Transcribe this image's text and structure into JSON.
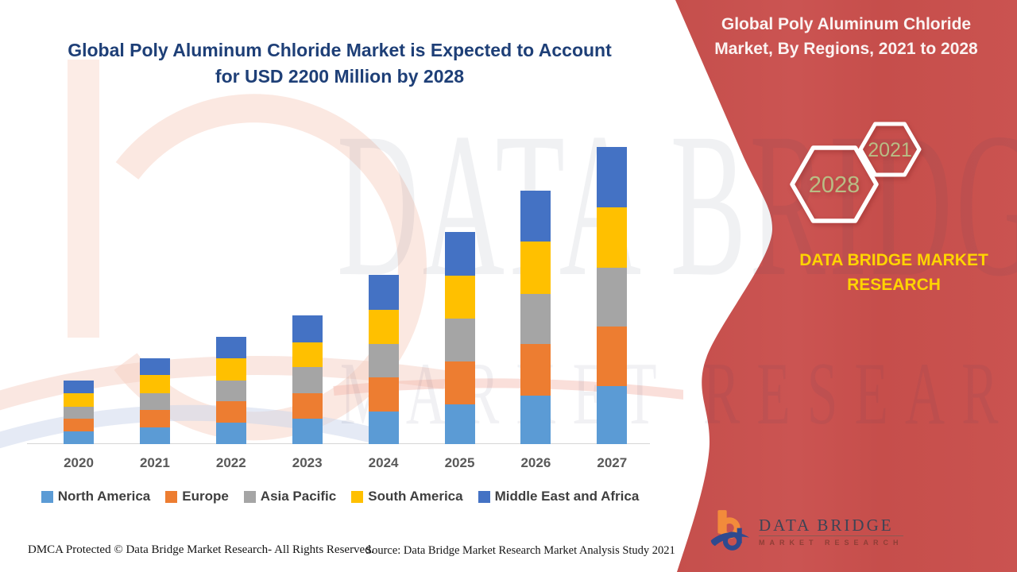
{
  "title": {
    "line1": "Global Poly Aluminum Chloride Market is Expected to Account",
    "line2": "for USD 2200 Million by 2028",
    "color": "#1e3f77"
  },
  "side_panel": {
    "bg_color": "#c9514e",
    "heading_line1": "Global Poly Aluminum Chloride",
    "heading_line2": "Market, By Regions, 2021 to 2028",
    "hexagon_large_label": "2028",
    "hexagon_small_label": "2021",
    "hexagon_label_color": "#b9bd85",
    "brand_line1": "DATA BRIDGE MARKET",
    "brand_line2": "RESEARCH",
    "brand_color": "#ffd400",
    "logo": {
      "name": "DATA BRIDGE",
      "subname": "MARKET RESEARCH"
    }
  },
  "watermark": {
    "line1": "DATA BRIDGE",
    "line2": "MARKET RESEARCH"
  },
  "chart_data": {
    "type": "bar",
    "stacked": true,
    "title": "Global Poly Aluminum Chloride Market, By Regions, 2021 to 2028",
    "xlabel": "",
    "ylabel": "",
    "y_axis_visible": false,
    "units": "relative segment heights (no value axis shown in source image)",
    "legend_position": "bottom",
    "axis_label_color": "#595959",
    "legend_text_color": "#3f3f3f",
    "categories": [
      "2020",
      "2021",
      "2022",
      "2023",
      "2024",
      "2025",
      "2026",
      "2027"
    ],
    "series": [
      {
        "name": "North America",
        "color": "#5B9BD5",
        "values": [
          16,
          21,
          27,
          32,
          41,
          50,
          61,
          73
        ]
      },
      {
        "name": "Europe",
        "color": "#ED7D31",
        "values": [
          16,
          22,
          27,
          32,
          43,
          54,
          65,
          75
        ]
      },
      {
        "name": "Asia Pacific",
        "color": "#A5A5A5",
        "values": [
          15,
          21,
          26,
          33,
          42,
          54,
          63,
          74
        ]
      },
      {
        "name": "South America",
        "color": "#FFC000",
        "values": [
          17,
          23,
          28,
          31,
          43,
          54,
          66,
          76
        ]
      },
      {
        "name": "Middle East and Africa",
        "color": "#4472C4",
        "values": [
          16,
          21,
          27,
          34,
          44,
          55,
          64,
          76
        ]
      }
    ],
    "bar_totals": [
      80,
      108,
      135,
      162,
      213,
      267,
      319,
      374
    ]
  },
  "footer": {
    "dmca": "DMCA Protected © Data Bridge Market Research- All Rights Reserved.",
    "source": "Source: Data Bridge Market Research Market Analysis Study 2021"
  }
}
